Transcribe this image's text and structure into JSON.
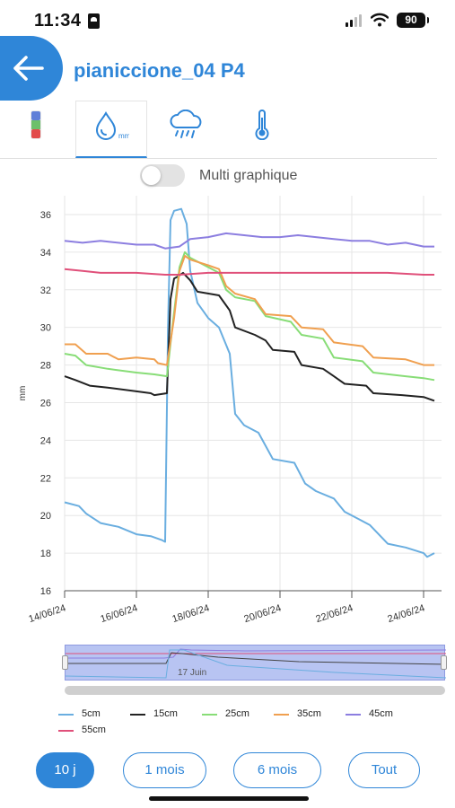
{
  "status_bar": {
    "time": "11:34",
    "battery": "90"
  },
  "header": {
    "title": "pianiccione_04 P4"
  },
  "tabs": [
    {
      "name": "battery-icon",
      "active": false
    },
    {
      "name": "moisture-mm-icon",
      "label": "mm",
      "active": true
    },
    {
      "name": "rain-cloud-icon",
      "active": false
    },
    {
      "name": "thermometer-icon",
      "active": false
    }
  ],
  "toggle": {
    "label": "Multi graphique",
    "on": false
  },
  "colors": {
    "accent": "#2f86d8",
    "5cm": "#6aaee0",
    "15cm": "#222222",
    "25cm": "#88dd77",
    "35cm": "#f0a050",
    "45cm": "#8c7ee0",
    "55cm": "#e0507a"
  },
  "chart_data": {
    "type": "line",
    "ylabel": "mm",
    "ylim": [
      16,
      37
    ],
    "yticks": [
      "36",
      "34",
      "32",
      "30",
      "28",
      "26",
      "24",
      "22",
      "20",
      "18",
      "16"
    ],
    "xlim": [
      0,
      10.5
    ],
    "xticks": [
      {
        "x": 0,
        "label": "14/06/24"
      },
      {
        "x": 2,
        "label": "16/06/24"
      },
      {
        "x": 4,
        "label": "18/06/24"
      },
      {
        "x": 6,
        "label": "20/06/24"
      },
      {
        "x": 8,
        "label": "22/06/24"
      },
      {
        "x": 10,
        "label": "24/06/24"
      }
    ],
    "series": [
      {
        "name": "5cm",
        "color": "#6aaee0",
        "points": [
          [
            0,
            20.7
          ],
          [
            0.4,
            20.5
          ],
          [
            0.6,
            20.1
          ],
          [
            1,
            19.6
          ],
          [
            1.5,
            19.4
          ],
          [
            2,
            19.0
          ],
          [
            2.4,
            18.9
          ],
          [
            2.7,
            18.7
          ],
          [
            2.8,
            18.6
          ],
          [
            2.88,
            30.0
          ],
          [
            2.95,
            35.7
          ],
          [
            3.05,
            36.2
          ],
          [
            3.25,
            36.3
          ],
          [
            3.4,
            35.5
          ],
          [
            3.5,
            33.0
          ],
          [
            3.7,
            31.3
          ],
          [
            4,
            30.5
          ],
          [
            4.3,
            30.0
          ],
          [
            4.6,
            28.6
          ],
          [
            4.75,
            25.4
          ],
          [
            5,
            24.8
          ],
          [
            5.4,
            24.4
          ],
          [
            5.8,
            23.0
          ],
          [
            6.4,
            22.8
          ],
          [
            6.7,
            21.7
          ],
          [
            7,
            21.3
          ],
          [
            7.5,
            20.9
          ],
          [
            7.8,
            20.2
          ],
          [
            8.2,
            19.8
          ],
          [
            8.5,
            19.5
          ],
          [
            9,
            18.5
          ],
          [
            9.5,
            18.3
          ],
          [
            10,
            18.0
          ],
          [
            10.1,
            17.8
          ],
          [
            10.3,
            18.0
          ]
        ]
      },
      {
        "name": "15cm",
        "color": "#222222",
        "points": [
          [
            0,
            27.4
          ],
          [
            0.3,
            27.2
          ],
          [
            0.7,
            26.9
          ],
          [
            1.2,
            26.8
          ],
          [
            2,
            26.6
          ],
          [
            2.4,
            26.5
          ],
          [
            2.5,
            26.4
          ],
          [
            2.85,
            26.5
          ],
          [
            2.95,
            31.5
          ],
          [
            3.05,
            32.6
          ],
          [
            3.15,
            32.7
          ],
          [
            3.3,
            32.9
          ],
          [
            3.5,
            32.5
          ],
          [
            3.7,
            31.9
          ],
          [
            4.3,
            31.7
          ],
          [
            4.6,
            30.9
          ],
          [
            4.75,
            30.0
          ],
          [
            5.3,
            29.6
          ],
          [
            5.6,
            29.3
          ],
          [
            5.8,
            28.8
          ],
          [
            6.4,
            28.7
          ],
          [
            6.6,
            28.0
          ],
          [
            7.2,
            27.8
          ],
          [
            7.5,
            27.4
          ],
          [
            7.8,
            27.0
          ],
          [
            8.4,
            26.9
          ],
          [
            8.6,
            26.5
          ],
          [
            9.4,
            26.4
          ],
          [
            10,
            26.3
          ],
          [
            10.3,
            26.1
          ]
        ]
      },
      {
        "name": "25cm",
        "color": "#88dd77",
        "points": [
          [
            0,
            28.6
          ],
          [
            0.3,
            28.5
          ],
          [
            0.6,
            28.0
          ],
          [
            1.2,
            27.8
          ],
          [
            2,
            27.6
          ],
          [
            2.5,
            27.5
          ],
          [
            2.85,
            27.4
          ],
          [
            3.0,
            30.0
          ],
          [
            3.2,
            33.2
          ],
          [
            3.35,
            34.0
          ],
          [
            3.5,
            33.7
          ],
          [
            4,
            33.2
          ],
          [
            4.3,
            32.9
          ],
          [
            4.5,
            32.0
          ],
          [
            4.75,
            31.6
          ],
          [
            5.3,
            31.4
          ],
          [
            5.6,
            30.6
          ],
          [
            6.3,
            30.3
          ],
          [
            6.6,
            29.6
          ],
          [
            7.2,
            29.4
          ],
          [
            7.5,
            28.4
          ],
          [
            8.3,
            28.2
          ],
          [
            8.6,
            27.6
          ],
          [
            9.5,
            27.4
          ],
          [
            10,
            27.3
          ],
          [
            10.3,
            27.2
          ]
        ]
      },
      {
        "name": "35cm",
        "color": "#f0a050",
        "points": [
          [
            0,
            29.1
          ],
          [
            0.3,
            29.1
          ],
          [
            0.6,
            28.6
          ],
          [
            1.2,
            28.6
          ],
          [
            1.5,
            28.3
          ],
          [
            2,
            28.4
          ],
          [
            2.5,
            28.3
          ],
          [
            2.6,
            28.1
          ],
          [
            2.85,
            28.0
          ],
          [
            3.05,
            30.5
          ],
          [
            3.2,
            33.0
          ],
          [
            3.35,
            33.8
          ],
          [
            3.5,
            33.6
          ],
          [
            4,
            33.3
          ],
          [
            4.3,
            33.1
          ],
          [
            4.5,
            32.2
          ],
          [
            4.75,
            31.8
          ],
          [
            5.3,
            31.5
          ],
          [
            5.6,
            30.7
          ],
          [
            6.3,
            30.6
          ],
          [
            6.6,
            30.0
          ],
          [
            7.2,
            29.9
          ],
          [
            7.5,
            29.2
          ],
          [
            8.3,
            29.0
          ],
          [
            8.6,
            28.4
          ],
          [
            9.5,
            28.3
          ],
          [
            10,
            28.0
          ],
          [
            10.3,
            28.0
          ]
        ]
      },
      {
        "name": "45cm",
        "color": "#8c7ee0",
        "points": [
          [
            0,
            34.6
          ],
          [
            0.5,
            34.5
          ],
          [
            1,
            34.6
          ],
          [
            2,
            34.4
          ],
          [
            2.5,
            34.4
          ],
          [
            2.8,
            34.2
          ],
          [
            3.2,
            34.3
          ],
          [
            3.5,
            34.7
          ],
          [
            4,
            34.8
          ],
          [
            4.5,
            35.0
          ],
          [
            5,
            34.9
          ],
          [
            5.5,
            34.8
          ],
          [
            6,
            34.8
          ],
          [
            6.5,
            34.9
          ],
          [
            7,
            34.8
          ],
          [
            7.5,
            34.7
          ],
          [
            8,
            34.6
          ],
          [
            8.5,
            34.6
          ],
          [
            9,
            34.4
          ],
          [
            9.5,
            34.5
          ],
          [
            10,
            34.3
          ],
          [
            10.3,
            34.3
          ]
        ]
      },
      {
        "name": "55cm",
        "color": "#e0507a",
        "points": [
          [
            0,
            33.1
          ],
          [
            0.5,
            33.0
          ],
          [
            1,
            32.9
          ],
          [
            2,
            32.9
          ],
          [
            2.8,
            32.8
          ],
          [
            3.2,
            32.8
          ],
          [
            4,
            32.9
          ],
          [
            5,
            32.9
          ],
          [
            6,
            32.9
          ],
          [
            7,
            32.9
          ],
          [
            8,
            32.9
          ],
          [
            9,
            32.9
          ],
          [
            10,
            32.8
          ],
          [
            10.3,
            32.8
          ]
        ]
      }
    ]
  },
  "navigator": {
    "date_label": "17 Juin"
  },
  "legend": [
    {
      "label": "5cm",
      "color": "#6aaee0"
    },
    {
      "label": "15cm",
      "color": "#222222"
    },
    {
      "label": "25cm",
      "color": "#88dd77"
    },
    {
      "label": "35cm",
      "color": "#f0a050"
    },
    {
      "label": "45cm",
      "color": "#8c7ee0"
    },
    {
      "label": "55cm",
      "color": "#e0507a"
    }
  ],
  "range_buttons": [
    {
      "label": "10 j",
      "active": true
    },
    {
      "label": "1 mois",
      "active": false
    },
    {
      "label": "6 mois",
      "active": false
    },
    {
      "label": "Tout",
      "active": false
    }
  ]
}
